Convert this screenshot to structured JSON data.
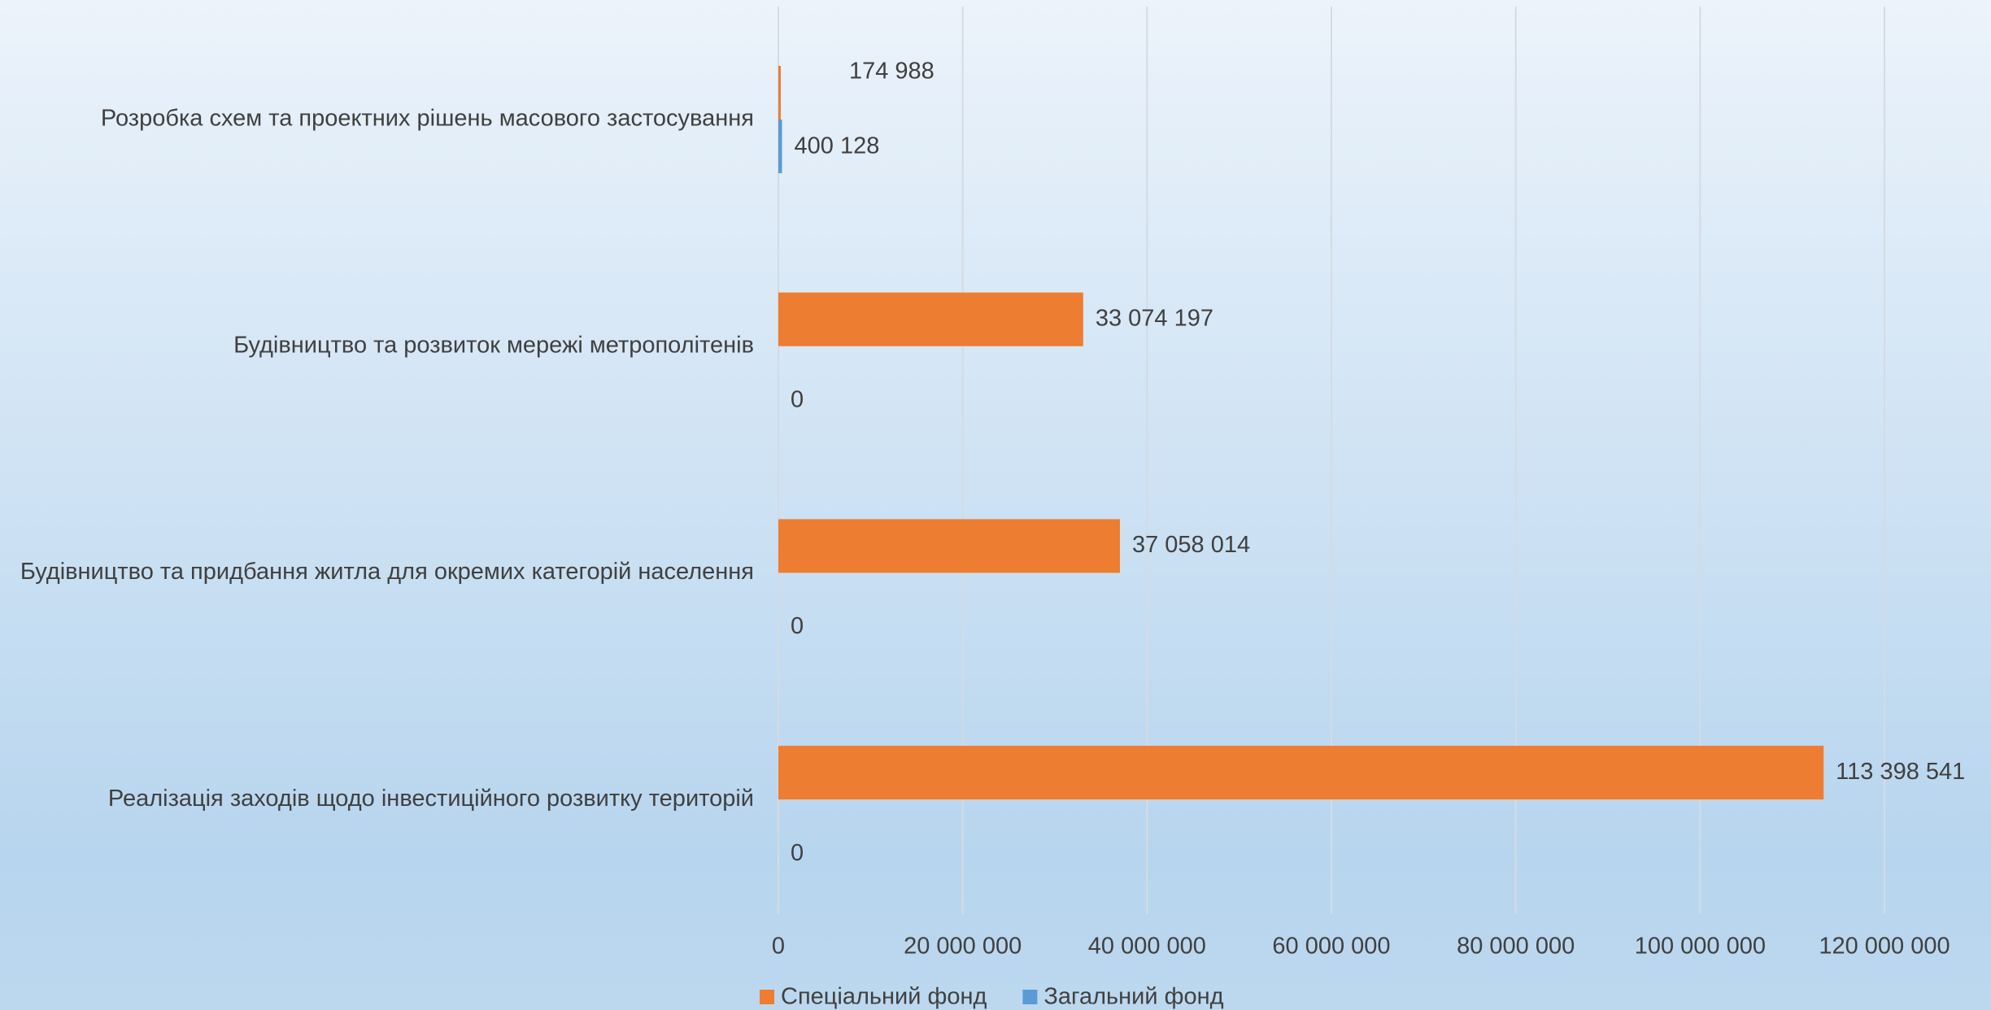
{
  "chart_data": {
    "type": "bar",
    "orientation": "horizontal",
    "categories": [
      "Розробка схем та проектних рішень масового застосування",
      "Будівництво та розвиток мережі метрополітенів",
      "Будівництво та придбання житла для окремих категорій населення",
      "Реалізація заходів щодо інвестиційного розвитку територій"
    ],
    "series": [
      {
        "name": "Спеціальний фонд",
        "color": "#ed7d31",
        "values": [
          174988,
          33074197,
          37058014,
          113398541
        ],
        "value_labels": [
          "174 988",
          "33 074 197",
          "37 058 014",
          "113 398 541"
        ]
      },
      {
        "name": "Загальний фонд",
        "color": "#5b9bd5",
        "values": [
          400128,
          0,
          0,
          0
        ],
        "value_labels": [
          "400 128",
          "0",
          "0",
          "0"
        ]
      }
    ],
    "xlim": [
      0,
      120000000
    ],
    "xticks": [
      0,
      {
        "value": 20000000,
        "label": "20 000 000"
      },
      {
        "value": 40000000,
        "label": "40 000 000"
      },
      {
        "value": 60000000,
        "label": "60 000 000"
      },
      {
        "value": 80000000,
        "label": "80 000 000"
      },
      {
        "value": 100000000,
        "label": "100 000 000"
      },
      {
        "value": 120000000,
        "label": "120 000 000"
      }
    ],
    "grid": true,
    "legend": "bottom"
  }
}
